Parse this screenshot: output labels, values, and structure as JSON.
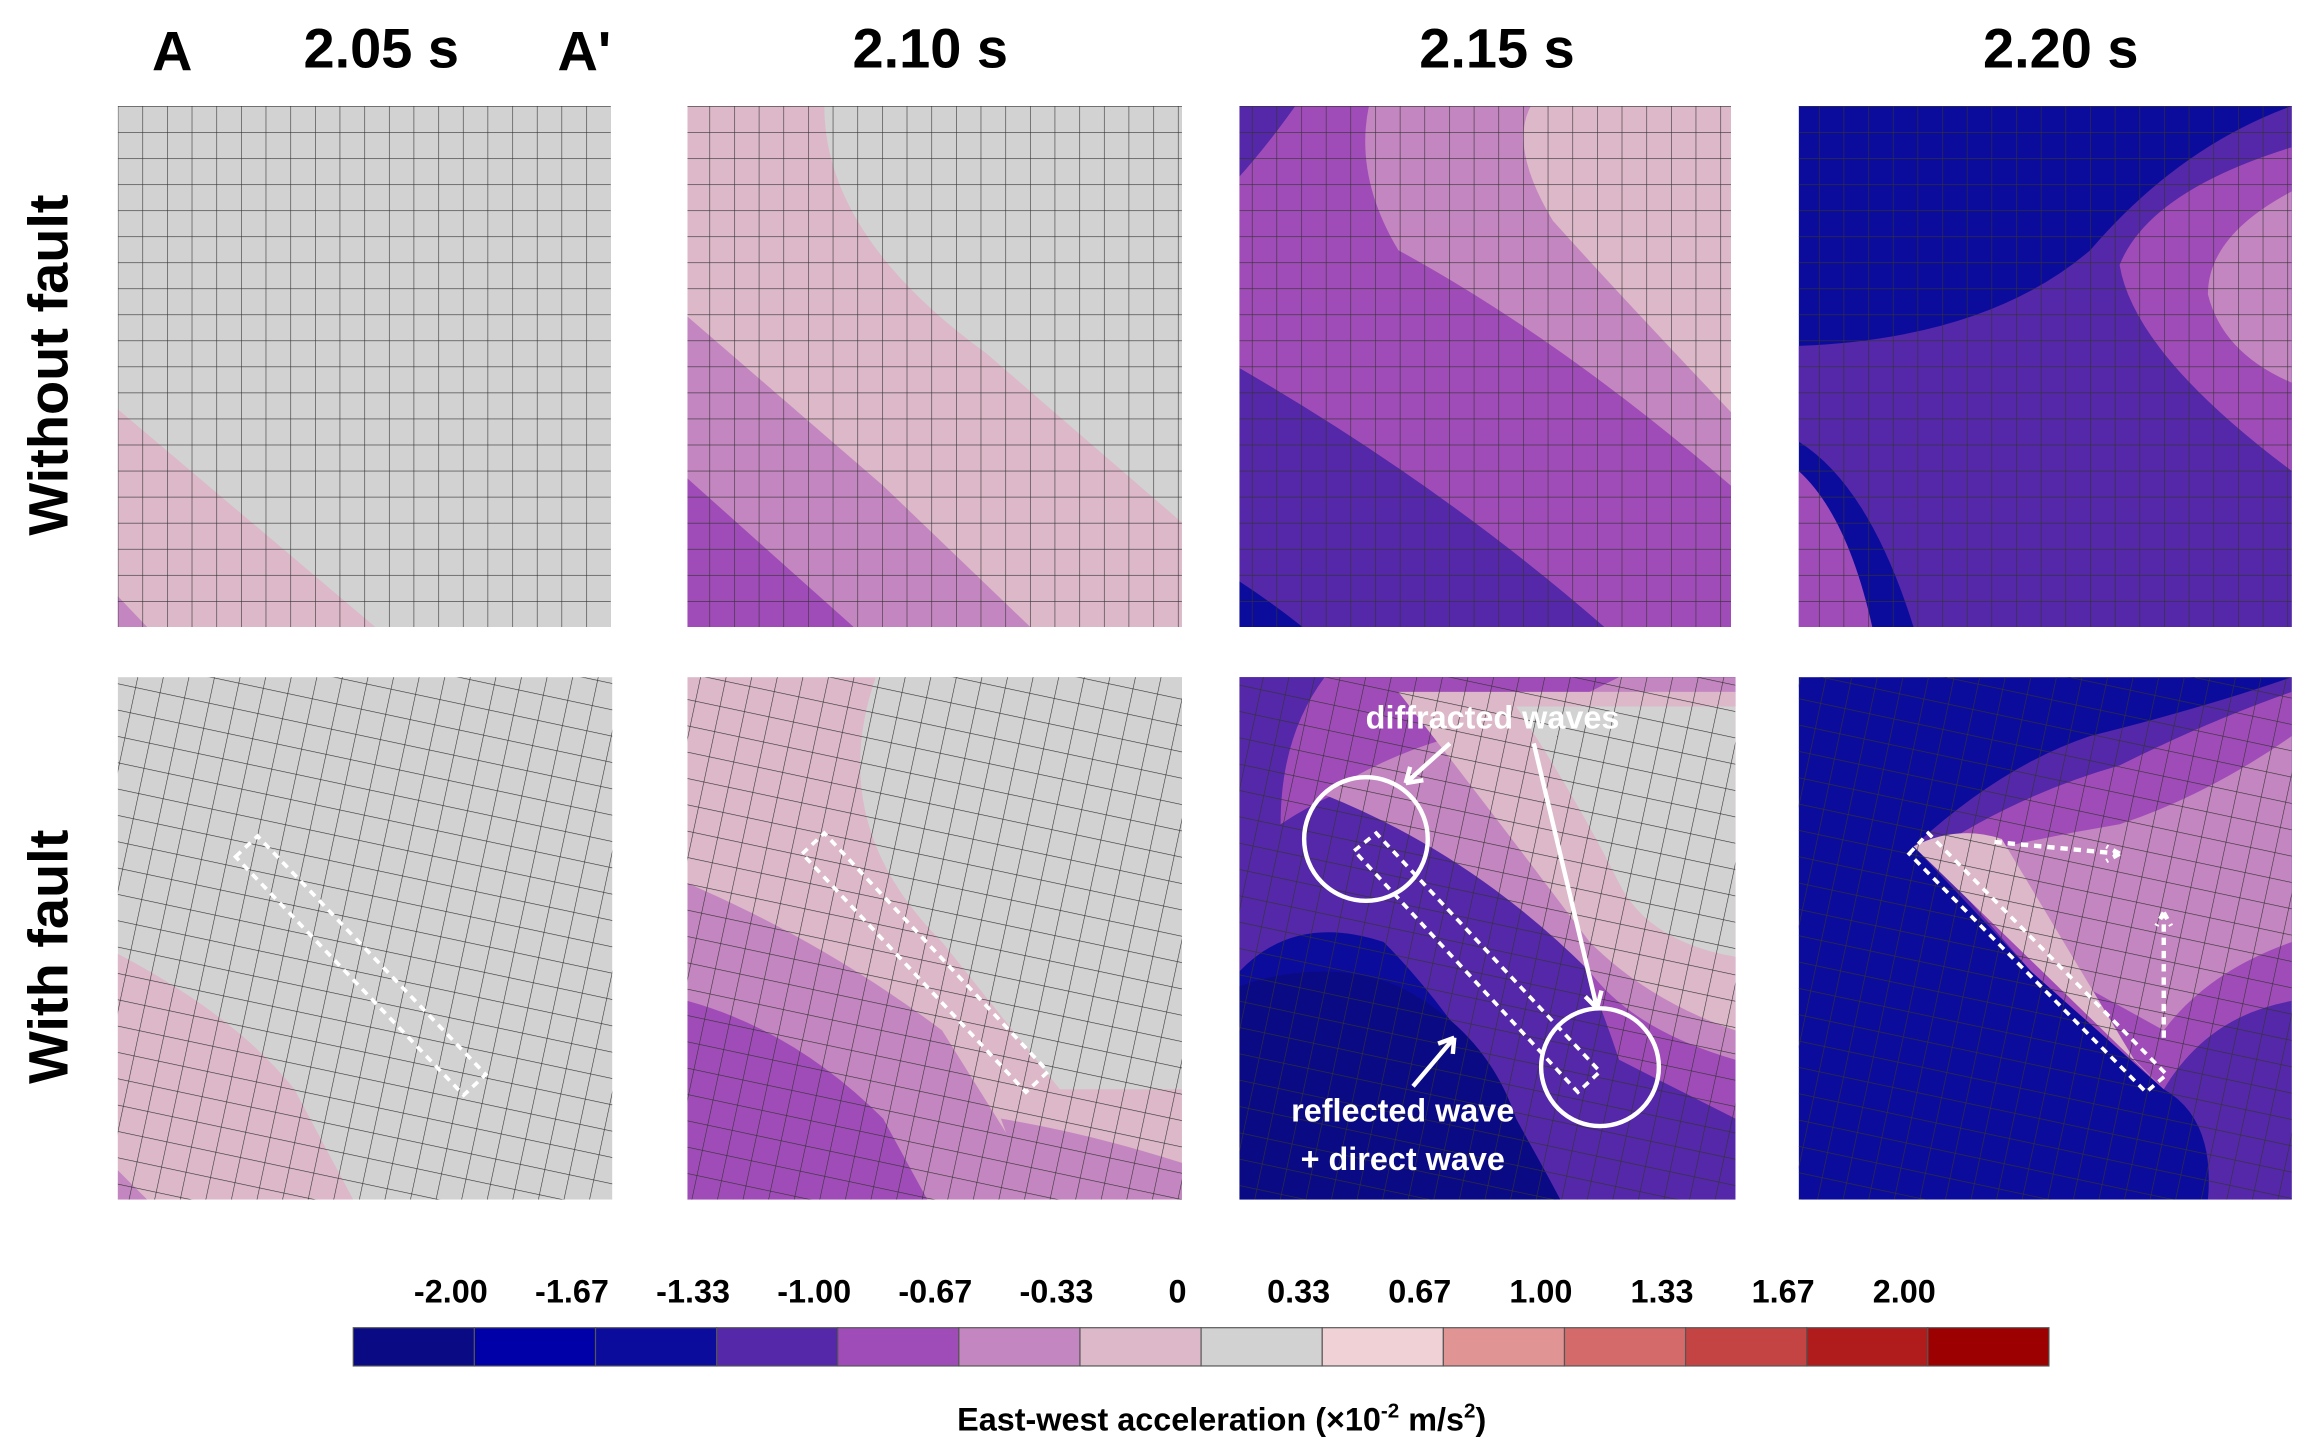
{
  "header": {
    "marker_left": "A",
    "marker_right": "A'",
    "columns": [
      "2.05 s",
      "2.10 s",
      "2.15 s",
      "2.20 s"
    ]
  },
  "rows": [
    "Without fault",
    "With fault"
  ],
  "annotations": {
    "diffracted": "diffracted waves",
    "reflected": "reflected wave",
    "direct": "+ direct wave"
  },
  "colorbar": {
    "labels": [
      "-2.00",
      "-1.67",
      "-1.33",
      "-1.00",
      "-0.67",
      "-0.33",
      "0",
      "0.33",
      "0.67",
      "1.00",
      "1.33",
      "1.67",
      "2.00"
    ],
    "colors": [
      "#0a0a84",
      "#0000a8",
      "#0c0c9c",
      "#5428a8",
      "#a04cb8",
      "#c486c0",
      "#dcb8c8",
      "#d2d2d2",
      "#f0d2d6",
      "#e09494",
      "#d46a6a",
      "#c44444",
      "#b01c1c",
      "#9c0000"
    ],
    "caption": {
      "text": "East-west acceleration (×10",
      "exp1": "-2",
      "unit": " m/s",
      "exp2": "2",
      "close": ")"
    }
  }
}
